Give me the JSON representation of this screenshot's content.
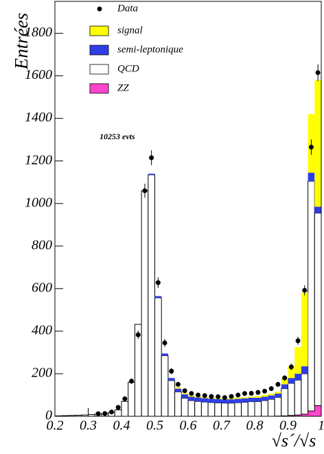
{
  "chart_data": {
    "type": "histogram",
    "xlabel": "√s´/√s",
    "ylabel": "Entrées",
    "annotation": "10253 evts",
    "bins": [
      0.2,
      0.22,
      0.24,
      0.26,
      0.28,
      0.3,
      0.32,
      0.34,
      0.36,
      0.38,
      0.4,
      0.42,
      0.44,
      0.46,
      0.48,
      0.5,
      0.52,
      0.54,
      0.56,
      0.58,
      0.6,
      0.62,
      0.64,
      0.66,
      0.68,
      0.7,
      0.72,
      0.74,
      0.76,
      0.78,
      0.8,
      0.82,
      0.84,
      0.86,
      0.88,
      0.9,
      0.92,
      0.94,
      0.96,
      0.98,
      1.0
    ],
    "series": [
      {
        "name": "signal",
        "color": "#ffff00",
        "values": [
          0,
          0,
          0,
          0,
          0,
          0,
          0,
          0,
          0,
          0,
          0,
          0,
          0,
          0,
          0,
          0,
          0,
          0,
          5,
          5,
          5,
          5,
          5,
          5,
          5,
          5,
          5,
          5,
          5,
          5,
          8,
          8,
          8,
          8,
          30,
          55,
          125,
          345,
          275,
          595
        ]
      },
      {
        "name": "semi-leptonique",
        "color": "#2f3fe8",
        "values": [
          0,
          0,
          0,
          0,
          0,
          0,
          0,
          0,
          0,
          0,
          0,
          0,
          0,
          0,
          5,
          8,
          10,
          12,
          15,
          18,
          18,
          18,
          18,
          18,
          18,
          18,
          18,
          18,
          18,
          18,
          18,
          18,
          18,
          18,
          20,
          25,
          30,
          35,
          40,
          30
        ]
      },
      {
        "name": "QCD",
        "color": "#ffffff",
        "values": [
          2,
          3,
          4,
          5,
          6,
          8,
          10,
          12,
          18,
          30,
          70,
          160,
          432,
          1060,
          1135,
          557,
          285,
          168,
          115,
          85,
          74,
          70,
          67,
          65,
          63,
          62,
          62,
          64,
          66,
          69,
          69,
          74,
          80,
          88,
          128,
          151,
          164,
          190,
          1080,
          905
        ]
      },
      {
        "name": "ZZ",
        "color": "#ff44cc",
        "values": [
          0,
          0,
          0,
          0,
          0,
          0,
          0,
          0,
          0,
          0,
          0,
          0,
          0,
          0,
          0,
          0,
          0,
          0,
          0,
          0,
          0,
          0,
          0,
          0,
          0,
          0,
          0,
          0,
          0,
          0,
          0,
          0,
          0,
          1,
          2,
          4,
          6,
          10,
          25,
          50
        ]
      }
    ],
    "data": {
      "name": "Data",
      "color": "#000000",
      "x": [
        0.33,
        0.35,
        0.37,
        0.39,
        0.41,
        0.43,
        0.45,
        0.47,
        0.49,
        0.51,
        0.53,
        0.55,
        0.57,
        0.59,
        0.61,
        0.63,
        0.65,
        0.67,
        0.69,
        0.71,
        0.73,
        0.75,
        0.77,
        0.79,
        0.81,
        0.83,
        0.85,
        0.87,
        0.89,
        0.91,
        0.93,
        0.95,
        0.97,
        0.99
      ],
      "values": [
        12,
        13,
        20,
        42,
        82,
        165,
        383,
        1060,
        1215,
        628,
        345,
        212,
        150,
        120,
        107,
        100,
        97,
        93,
        92,
        88,
        93,
        100,
        107,
        108,
        112,
        118,
        130,
        150,
        180,
        232,
        355,
        592,
        1265,
        1615
      ],
      "errors": [
        3.5,
        3.6,
        4.5,
        6.5,
        9,
        13,
        20,
        33,
        35,
        25,
        19,
        15,
        12,
        11,
        10,
        10,
        10,
        10,
        10,
        9,
        10,
        10,
        10,
        10,
        11,
        11,
        11,
        12,
        13,
        15,
        19,
        24,
        36,
        40
      ]
    },
    "xlim": [
      0.2,
      1.0
    ],
    "ylim": [
      0,
      1950
    ],
    "xticks": [
      0.2,
      0.3,
      0.4,
      0.5,
      0.6,
      0.7,
      0.8,
      0.9,
      1
    ],
    "yticks": [
      0,
      200,
      400,
      600,
      800,
      1000,
      1200,
      1400,
      1600,
      1800
    ],
    "legend": "upper left"
  }
}
